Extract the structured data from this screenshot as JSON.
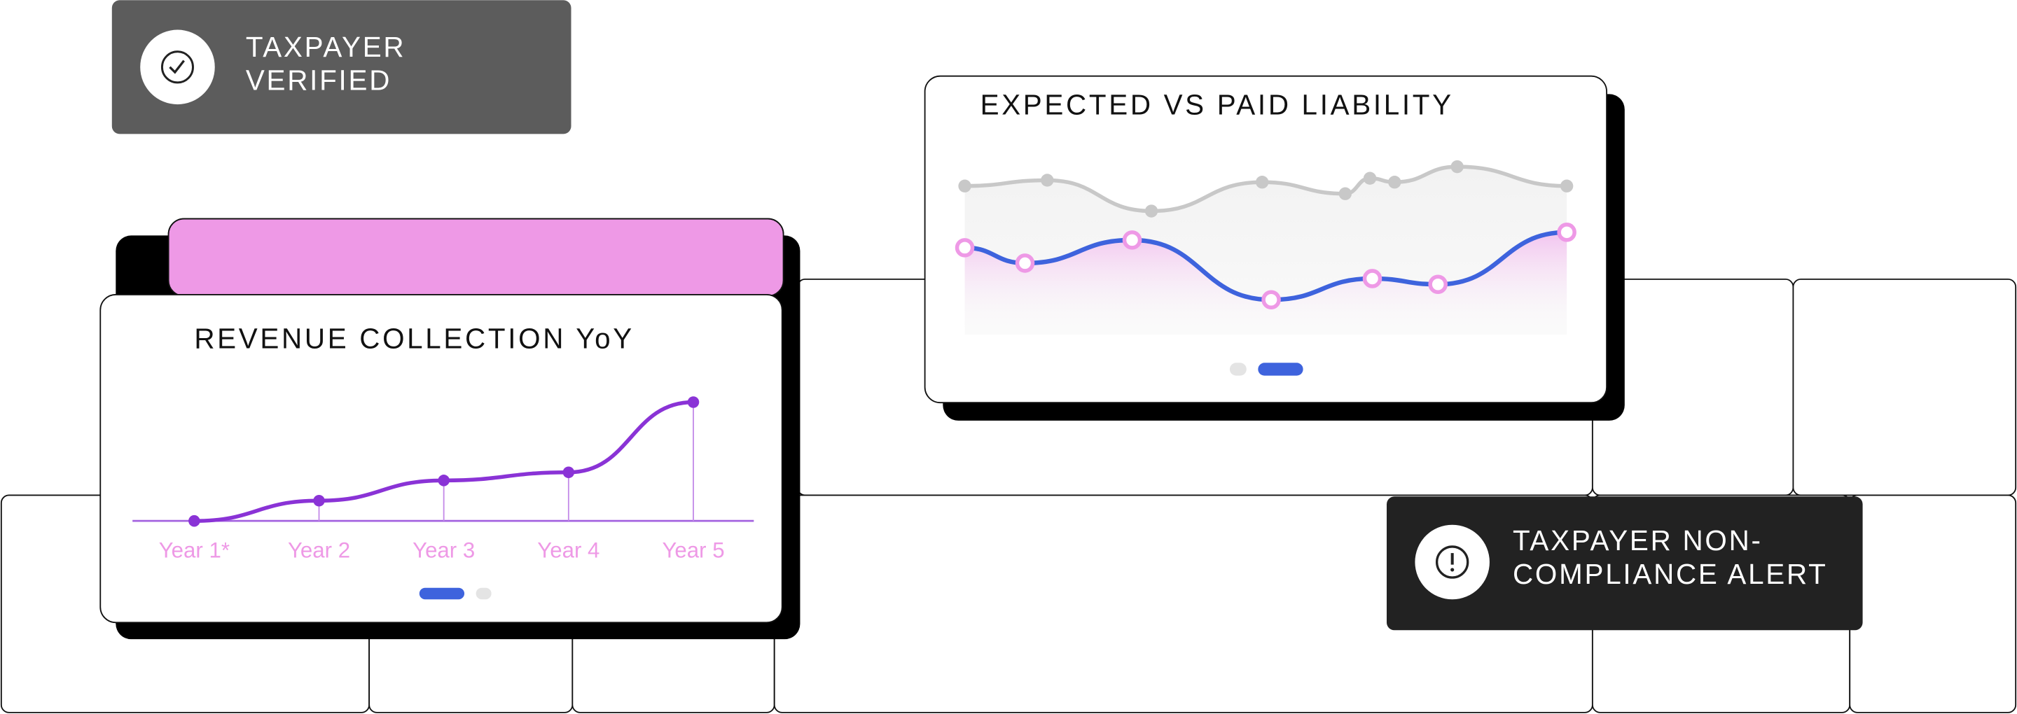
{
  "badges": [
    {
      "lines": [
        "TAXPAYER",
        "VERIFIED"
      ]
    },
    {
      "lines": [
        "TAXPAYER NON-",
        "COMPLIANCE ALERT"
      ]
    }
  ],
  "chart_data": [
    {
      "type": "line",
      "title": "REVENUE COLLECTION YoY",
      "categories": [
        "Year 1*",
        "Year 2",
        "Year 3",
        "Year 4",
        "Year 5"
      ],
      "values": [
        0,
        15,
        30,
        36,
        88
      ],
      "color": "#8a33d6",
      "ylim": [
        0,
        100
      ]
    },
    {
      "type": "line",
      "title": "EXPECTED VS PAID LIABILITY",
      "xlim": [
        0,
        100
      ],
      "ylim": [
        0,
        100
      ],
      "series": [
        {
          "color": "#c8c8c8",
          "x": [
            0,
            13.7,
            31,
            49.4,
            63.2,
            67.3,
            71.4,
            81.8,
            100
          ],
          "values": [
            77,
            80,
            64,
            79,
            73,
            81,
            79,
            87,
            77
          ]
        },
        {
          "color": "#3e63dd",
          "x": [
            0,
            10,
            27.8,
            50.9,
            67.7,
            78.6,
            100
          ],
          "values": [
            45,
            37,
            49,
            18,
            29,
            26,
            53
          ]
        }
      ]
    }
  ]
}
